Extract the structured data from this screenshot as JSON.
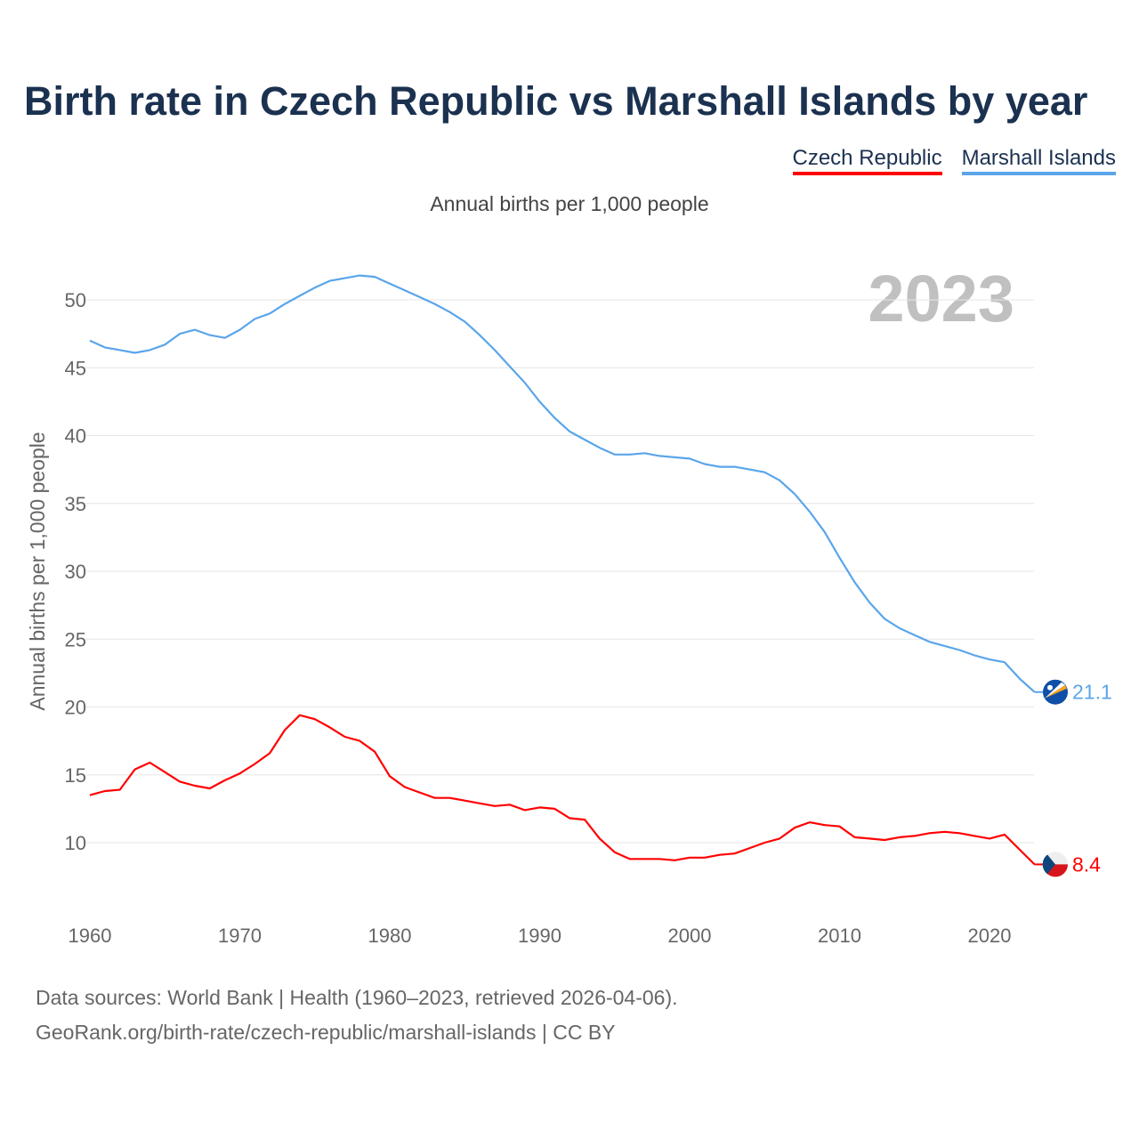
{
  "title": "Birth rate in Czech Republic vs Marshall Islands by year",
  "subtitle": "Annual births per 1,000 people",
  "year_label": "2023",
  "sources": [
    "Data sources: World Bank | Health (1960–2023, retrieved 2026-04-06).",
    "GeoRank.org/birth-rate/czech-republic/marshall-islands | CC BY"
  ],
  "chart_data": {
    "type": "line",
    "title": "Birth rate in Czech Republic vs Marshall Islands by year",
    "xlabel": "",
    "ylabel": "Annual births per 1,000 people",
    "xlim": [
      1960,
      2023
    ],
    "ylim": [
      6,
      54
    ],
    "xticks": [
      1960,
      1970,
      1980,
      1990,
      2000,
      2010,
      2020
    ],
    "yticks": [
      10,
      15,
      20,
      25,
      30,
      35,
      40,
      45,
      50
    ],
    "grid": true,
    "legend_position": "top-right",
    "x_start": 1960,
    "series": [
      {
        "name": "Czech Republic",
        "color": "#ff0000",
        "end_label": "8.4",
        "flag": "czech-flag",
        "values": [
          13.5,
          13.8,
          13.9,
          15.4,
          15.9,
          15.2,
          14.5,
          14.2,
          14.0,
          14.6,
          15.1,
          15.8,
          16.6,
          18.3,
          19.4,
          19.1,
          18.5,
          17.8,
          17.5,
          16.7,
          14.9,
          14.1,
          13.7,
          13.3,
          13.3,
          13.1,
          12.9,
          12.7,
          12.8,
          12.4,
          12.6,
          12.5,
          11.8,
          11.7,
          10.3,
          9.3,
          8.8,
          8.8,
          8.8,
          8.7,
          8.9,
          8.9,
          9.1,
          9.2,
          9.6,
          10.0,
          10.3,
          11.1,
          11.5,
          11.3,
          11.2,
          10.4,
          10.3,
          10.2,
          10.4,
          10.5,
          10.7,
          10.8,
          10.7,
          10.5,
          10.3,
          10.6,
          9.5,
          8.4
        ]
      },
      {
        "name": "Marshall Islands",
        "color": "#5aa5ea",
        "end_label": "21.1",
        "flag": "marshall-islands-flag",
        "values": [
          47.0,
          46.5,
          46.3,
          46.1,
          46.3,
          46.7,
          47.5,
          47.8,
          47.4,
          47.2,
          47.8,
          48.6,
          49.0,
          49.7,
          50.3,
          50.9,
          51.4,
          51.6,
          51.8,
          51.7,
          51.2,
          50.7,
          50.2,
          49.7,
          49.1,
          48.4,
          47.4,
          46.3,
          45.1,
          43.9,
          42.5,
          41.3,
          40.3,
          39.7,
          39.1,
          38.6,
          38.6,
          38.7,
          38.5,
          38.4,
          38.3,
          37.9,
          37.7,
          37.7,
          37.5,
          37.3,
          36.7,
          35.7,
          34.4,
          32.9,
          31.0,
          29.2,
          27.7,
          26.5,
          25.8,
          25.3,
          24.8,
          24.5,
          24.2,
          23.8,
          23.5,
          23.3,
          22.1,
          21.1
        ]
      }
    ]
  }
}
